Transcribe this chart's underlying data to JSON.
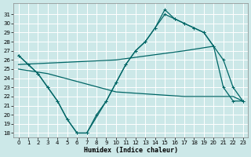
{
  "xlabel": "Humidex (Indice chaleur)",
  "background_color": "#cce8e8",
  "grid_color": "#ffffff",
  "line_color": "#006666",
  "xlim": [
    -0.5,
    23.5
  ],
  "ylim": [
    17.5,
    32.2
  ],
  "xticks": [
    0,
    1,
    2,
    3,
    4,
    5,
    6,
    7,
    8,
    9,
    10,
    11,
    12,
    13,
    14,
    15,
    16,
    17,
    18,
    19,
    20,
    21,
    22,
    23
  ],
  "yticks": [
    18,
    19,
    20,
    21,
    22,
    23,
    24,
    25,
    26,
    27,
    28,
    29,
    30,
    31
  ],
  "curve1": {
    "x": [
      0,
      1,
      2,
      3,
      4,
      5,
      6,
      7,
      8,
      9,
      10,
      11,
      12,
      13,
      14,
      15,
      16,
      17,
      18,
      19,
      20,
      21,
      22,
      23
    ],
    "y": [
      26.5,
      25.5,
      24.5,
      23.0,
      21.5,
      19.5,
      18.0,
      18.0,
      20.0,
      21.5,
      23.5,
      25.5,
      27.0,
      28.0,
      29.5,
      31.5,
      30.5,
      30.0,
      29.5,
      29.0,
      27.5,
      23.0,
      21.5,
      21.5
    ]
  },
  "curve2": {
    "x": [
      0,
      2,
      3,
      4,
      5,
      6,
      7,
      9,
      10,
      11,
      12,
      13,
      14,
      15,
      16,
      17,
      18,
      19,
      20,
      21,
      22,
      23
    ],
    "y": [
      26.5,
      24.5,
      23.0,
      21.5,
      19.5,
      18.0,
      18.0,
      21.5,
      23.5,
      25.5,
      27.0,
      28.0,
      29.5,
      31.0,
      30.5,
      30.0,
      29.5,
      29.0,
      27.5,
      26.0,
      23.0,
      21.5
    ]
  },
  "curve3": {
    "x": [
      0,
      10,
      17,
      20
    ],
    "y": [
      25.5,
      26.0,
      27.0,
      27.5
    ]
  },
  "curve4": {
    "x": [
      0,
      3,
      10,
      17,
      22,
      23
    ],
    "y": [
      25.0,
      24.5,
      22.5,
      22.0,
      22.0,
      21.5
    ]
  }
}
